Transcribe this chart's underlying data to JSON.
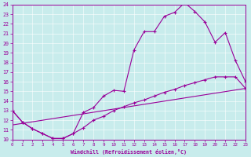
{
  "xlabel": "Windchill (Refroidissement éolien,°C)",
  "bg_color": "#c8ecec",
  "line_color": "#990099",
  "xlim": [
    0,
    23
  ],
  "ylim": [
    10,
    24
  ],
  "xticks": [
    0,
    1,
    2,
    3,
    4,
    5,
    6,
    7,
    8,
    9,
    10,
    11,
    12,
    13,
    14,
    15,
    16,
    17,
    18,
    19,
    20,
    21,
    22,
    23
  ],
  "yticks": [
    10,
    11,
    12,
    13,
    14,
    15,
    16,
    17,
    18,
    19,
    20,
    21,
    22,
    23,
    24
  ],
  "line1_x": [
    0,
    1,
    2,
    3,
    4,
    5,
    6,
    7,
    8,
    9,
    10,
    11,
    12,
    13,
    14,
    15,
    16,
    17,
    18,
    19,
    20,
    21,
    22,
    23
  ],
  "line1_y": [
    13.0,
    11.8,
    11.1,
    10.6,
    10.1,
    10.1,
    10.6,
    12.8,
    13.3,
    14.5,
    15.1,
    15.0,
    19.3,
    21.2,
    21.2,
    22.8,
    23.2,
    24.2,
    23.3,
    22.2,
    20.1,
    21.1,
    18.2,
    16.0
  ],
  "line2_x": [
    0,
    1,
    2,
    3,
    4,
    5,
    6,
    7,
    8,
    9,
    10,
    11,
    12,
    13,
    14,
    15,
    16,
    17,
    18,
    19,
    20,
    21,
    22,
    23
  ],
  "line2_y": [
    13.0,
    11.8,
    11.1,
    10.6,
    10.1,
    10.1,
    10.6,
    11.2,
    12.0,
    12.4,
    13.0,
    13.4,
    13.8,
    14.1,
    14.5,
    14.9,
    15.2,
    15.6,
    15.9,
    16.2,
    16.5,
    16.5,
    16.5,
    15.3
  ],
  "line3_x": [
    0,
    23
  ],
  "line3_y": [
    11.5,
    15.3
  ]
}
